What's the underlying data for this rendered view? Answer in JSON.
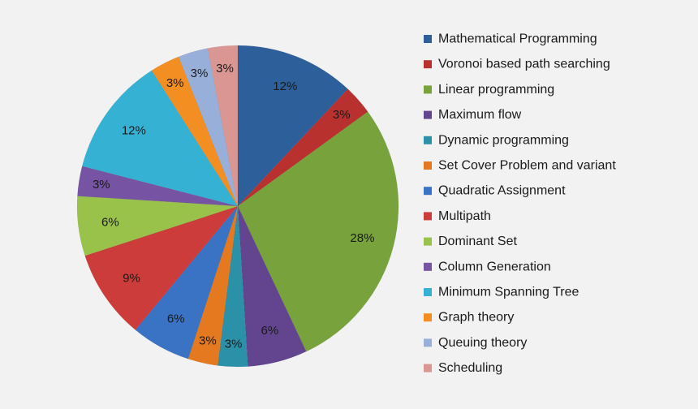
{
  "chart_data": {
    "type": "pie",
    "title": "",
    "start_angle_deg": 0,
    "direction": "clockwise",
    "legend_position": "right",
    "slices": [
      {
        "label": "Mathematical Programming",
        "value": 12,
        "value_label": "12%",
        "color": "#2d5f9a"
      },
      {
        "label": "Voronoi based path searching",
        "value": 3,
        "value_label": "3%",
        "color": "#b8312f"
      },
      {
        "label": "Linear programming",
        "value": 28,
        "value_label": "28%",
        "color": "#78a23c"
      },
      {
        "label": "Maximum flow",
        "value": 6,
        "value_label": "6%",
        "color": "#62458e"
      },
      {
        "label": "Dynamic programming",
        "value": 3,
        "value_label": "3%",
        "color": "#2a91a8"
      },
      {
        "label": "Set Cover Problem and variant",
        "value": 3,
        "value_label": "3%",
        "color": "#e5791f"
      },
      {
        "label": "Quadratic Assignment",
        "value": 6,
        "value_label": "6%",
        "color": "#3a72c4"
      },
      {
        "label": "Multipath",
        "value": 9,
        "value_label": "9%",
        "color": "#cc3c3a"
      },
      {
        "label": "Dominant Set",
        "value": 6,
        "value_label": "6%",
        "color": "#98c24a"
      },
      {
        "label": "Column Generation",
        "value": 3,
        "value_label": "3%",
        "color": "#7653a3"
      },
      {
        "label": "Minimum Spanning Tree",
        "value": 12,
        "value_label": "12%",
        "color": "#35b2d3"
      },
      {
        "label": "Graph theory",
        "value": 3,
        "value_label": "3%",
        "color": "#f28e22"
      },
      {
        "label": "Queuing theory",
        "value": 3,
        "value_label": "3%",
        "color": "#98b0d9"
      },
      {
        "label": "Scheduling",
        "value": 3,
        "value_label": "3%",
        "color": "#d99693"
      }
    ]
  }
}
